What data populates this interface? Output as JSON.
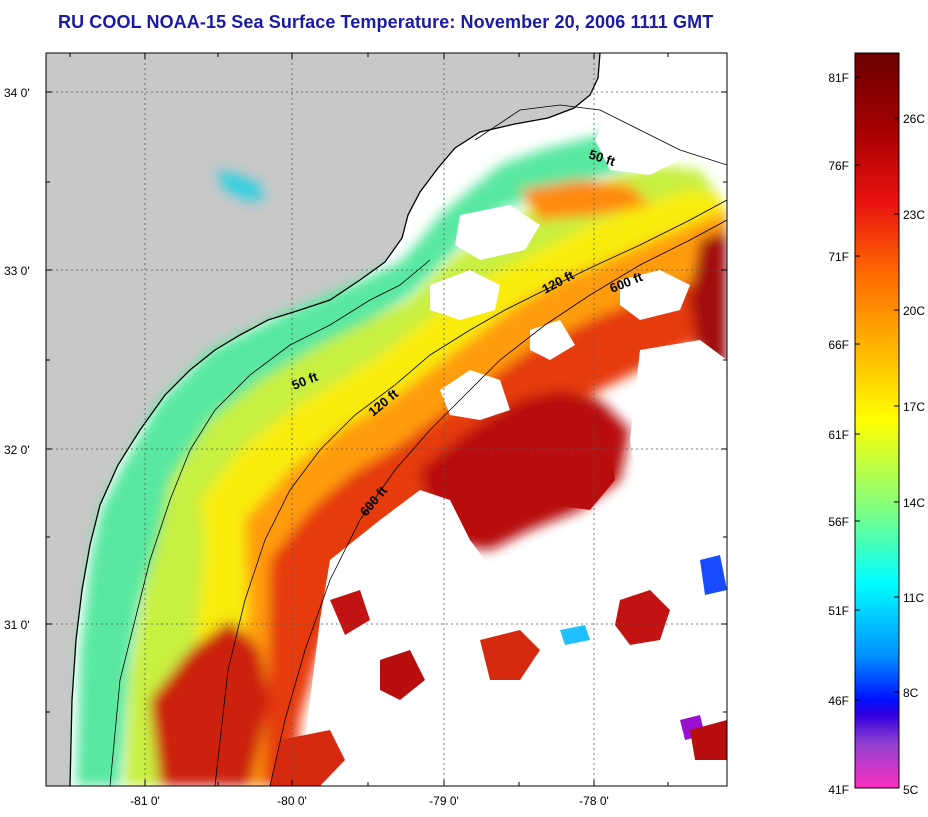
{
  "title": "RU COOL  NOAA-15  Sea Surface Temperature:  November 20, 2006 1111 GMT",
  "map": {
    "lat_labels": [
      "34 0'",
      "33 0'",
      "32 0'",
      "31 0'"
    ],
    "lon_labels": [
      "-81 0'",
      "-80 0'",
      "-79 0'",
      "-78 0'"
    ],
    "contour_labels": [
      "50 ft",
      "120 ft",
      "600 ft",
      "50 ft",
      "120 ft",
      "600 ft"
    ]
  },
  "colorbar": {
    "fahrenheit_labels": [
      "81F",
      "76F",
      "71F",
      "66F",
      "61F",
      "56F",
      "51F",
      "46F",
      "41F"
    ],
    "celsius_labels": [
      "26C",
      "23C",
      "20C",
      "17C",
      "14C",
      "11C",
      "8C",
      "5C"
    ]
  },
  "colors": {
    "title": "#1a1aa6",
    "land": "#c8c8c8",
    "cloud": "#ffffff"
  }
}
